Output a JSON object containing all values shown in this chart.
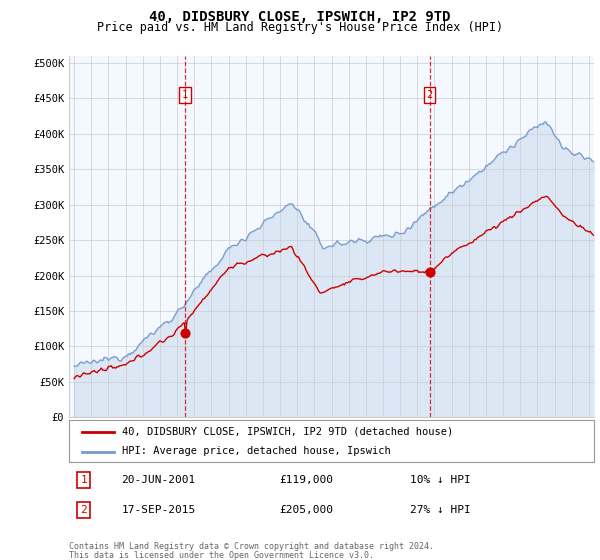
{
  "title": "40, DIDSBURY CLOSE, IPSWICH, IP2 9TD",
  "subtitle": "Price paid vs. HM Land Registry's House Price Index (HPI)",
  "ylabel_ticks": [
    "£0",
    "£50K",
    "£100K",
    "£150K",
    "£200K",
    "£250K",
    "£300K",
    "£350K",
    "£400K",
    "£450K",
    "£500K"
  ],
  "ytick_values": [
    0,
    50000,
    100000,
    150000,
    200000,
    250000,
    300000,
    350000,
    400000,
    450000,
    500000
  ],
  "ylim": [
    0,
    510000
  ],
  "xlim_start": 1994.7,
  "xlim_end": 2025.3,
  "point1": {
    "year": 2001.47,
    "value": 119000,
    "label": "1",
    "date": "20-JUN-2001",
    "price": "£119,000",
    "pct": "10% ↓ HPI"
  },
  "point2": {
    "year": 2015.72,
    "value": 205000,
    "label": "2",
    "date": "17-SEP-2015",
    "price": "£205,000",
    "pct": "27% ↓ HPI"
  },
  "legend_line1": "40, DIDSBURY CLOSE, IPSWICH, IP2 9TD (detached house)",
  "legend_line2": "HPI: Average price, detached house, Ipswich",
  "footer1": "Contains HM Land Registry data © Crown copyright and database right 2024.",
  "footer2": "This data is licensed under the Open Government Licence v3.0.",
  "red_color": "#cc0000",
  "blue_color": "#7799cc",
  "blue_fill": "#ddeeff",
  "bg_color": "#ffffff",
  "grid_color": "#cccccc",
  "title_fontsize": 10,
  "subtitle_fontsize": 8.5,
  "tick_fontsize": 7.5
}
